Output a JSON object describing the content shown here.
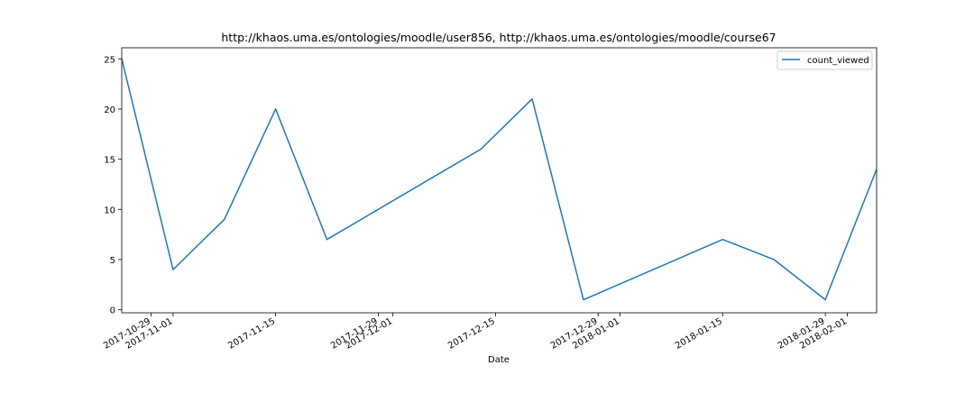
{
  "chart_data": {
    "type": "line",
    "title": "http://khaos.uma.es/ontologies/moodle/user856, http://khaos.uma.es/ontologies/moodle/course67",
    "xlabel": "Date",
    "ylabel": "",
    "x_type": "date",
    "xlim": [
      "2017-10-25",
      "2018-02-05"
    ],
    "ylim": [
      -0.3,
      26.1
    ],
    "yticks": [
      0,
      5,
      10,
      15,
      20,
      25
    ],
    "xticks": [
      "2017-10-29",
      "2017-11-01",
      "2017-11-15",
      "2017-11-29",
      "2017-12-01",
      "2017-12-15",
      "2017-12-29",
      "2018-01-01",
      "2018-01-15",
      "2018-01-29",
      "2018-02-01"
    ],
    "grid": false,
    "legend": "top-right",
    "series": [
      {
        "name": "count_viewed",
        "color": "#1f77b4",
        "x": [
          "2017-10-25",
          "2017-11-01",
          "2017-11-08",
          "2017-11-15",
          "2017-11-22",
          "2017-12-13",
          "2017-12-20",
          "2017-12-27",
          "2018-01-15",
          "2018-01-22",
          "2018-01-29",
          "2018-02-05"
        ],
        "values": [
          25,
          4,
          9,
          20,
          7,
          16,
          21,
          1,
          7,
          5,
          1,
          14
        ]
      }
    ]
  }
}
